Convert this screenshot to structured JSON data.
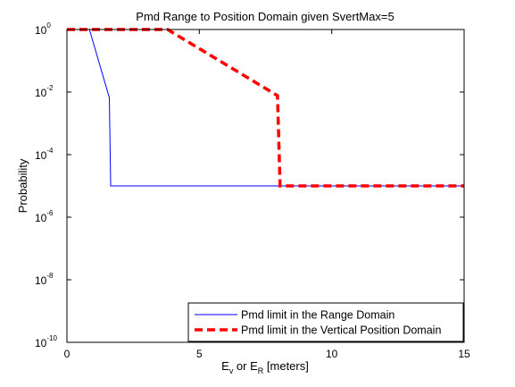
{
  "chart_data": {
    "type": "line",
    "title": "Pmd Range to Position Domain given SvertMax=5",
    "xlabel": {
      "parts": [
        {
          "text": "E",
          "role": "base"
        },
        {
          "text": "v",
          "role": "sub"
        },
        {
          "text": " or E",
          "role": "base"
        },
        {
          "text": "R",
          "role": "sub"
        },
        {
          "text": " [meters]",
          "role": "base"
        }
      ]
    },
    "ylabel": "Probability",
    "xlim": [
      0,
      15
    ],
    "ylim": [
      1e-10,
      1
    ],
    "yscale": "log",
    "grid": false,
    "legend_position": "bottom-right",
    "x_ticks": [
      "0",
      "5",
      "10",
      "15"
    ],
    "y_ticks": [
      {
        "base": "10",
        "exp": "0",
        "value": 1
      },
      {
        "base": "10",
        "exp": "-2",
        "value": 0.01
      },
      {
        "base": "10",
        "exp": "-4",
        "value": 0.0001
      },
      {
        "base": "10",
        "exp": "-6",
        "value": 1e-06
      },
      {
        "base": "10",
        "exp": "-8",
        "value": 1e-08
      },
      {
        "base": "10",
        "exp": "-10",
        "value": 1e-10
      }
    ],
    "series": [
      {
        "name": "Pmd limit in the Range Domain",
        "color": "#0000ff",
        "style": "solid",
        "x": [
          0,
          0.85,
          1.6,
          1.65,
          15
        ],
        "y": [
          1,
          1,
          0.0066,
          1e-05,
          1e-05
        ]
      },
      {
        "name": "Pmd limit in the Vertical Position Domain",
        "color": "#ff0000",
        "style": "dashed",
        "x": [
          0,
          3.8,
          7.95,
          8.05,
          15
        ],
        "y": [
          1,
          1,
          0.0077,
          1e-05,
          1e-05
        ]
      }
    ]
  }
}
